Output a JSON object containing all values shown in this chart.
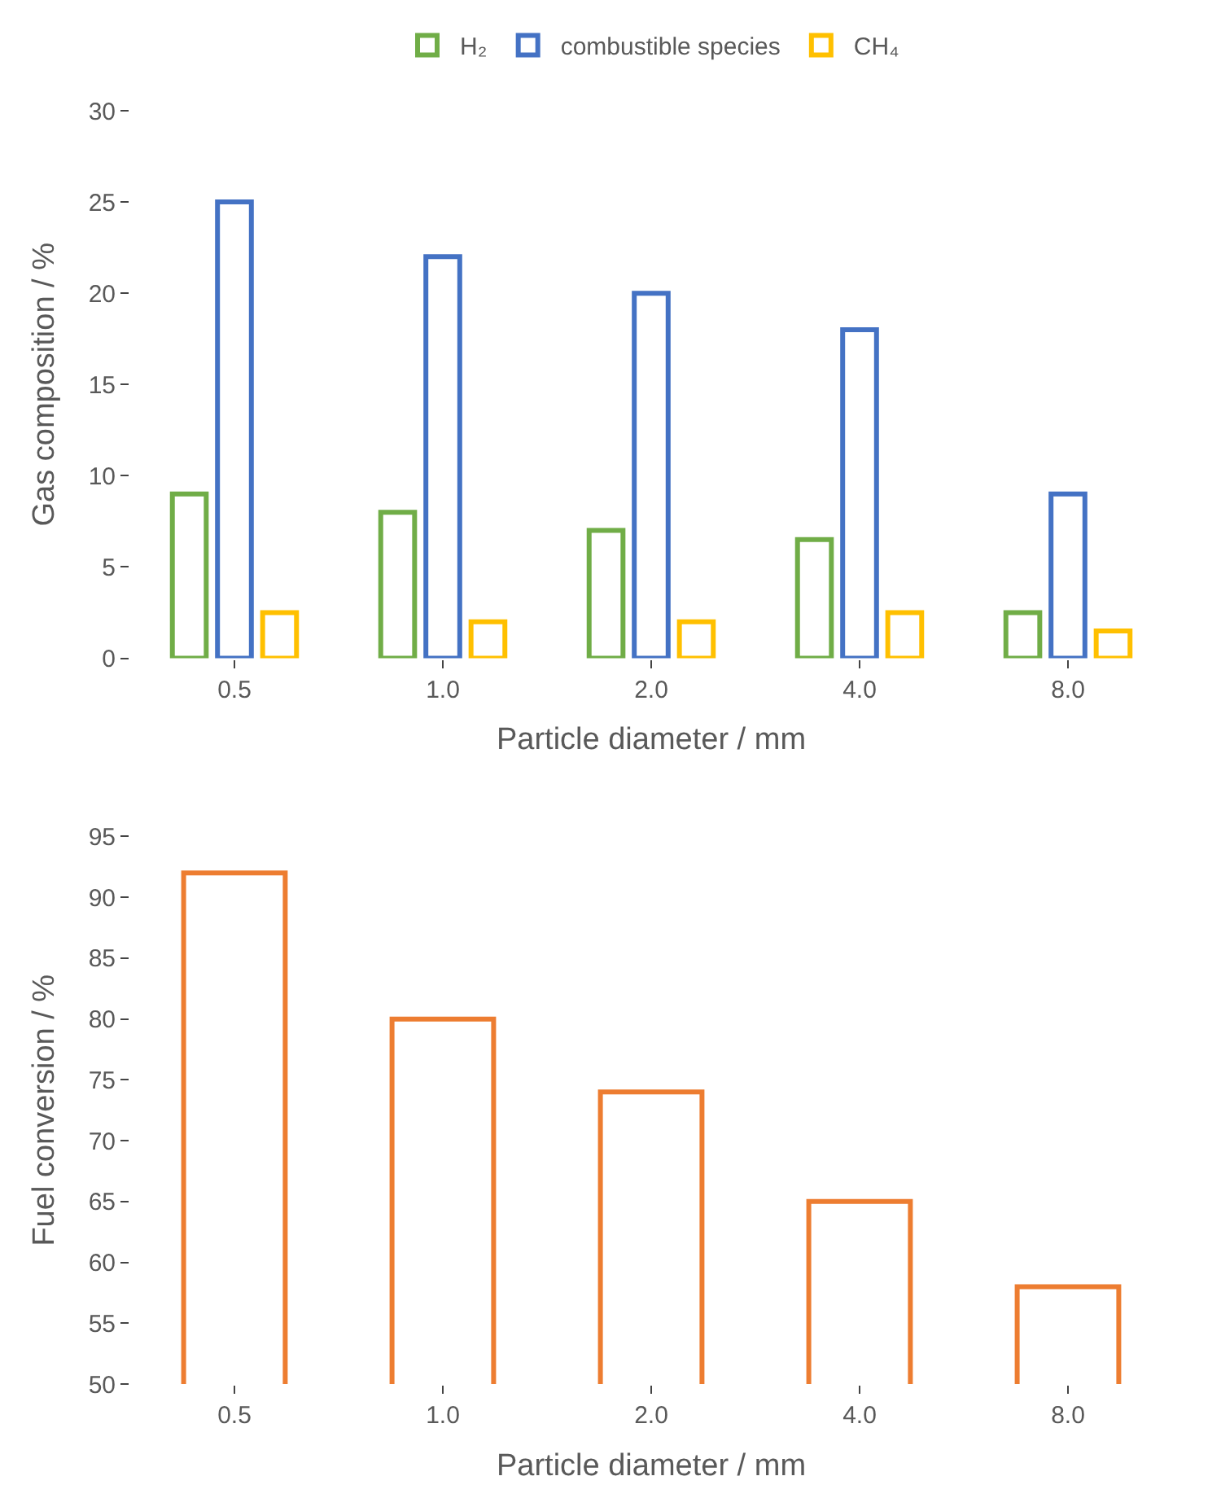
{
  "chart_data": [
    {
      "type": "bar",
      "categories": [
        "0.5",
        "1.0",
        "2.0",
        "4.0",
        "8.0"
      ],
      "xlabel": "Particle diameter / mm",
      "ylabel": "Gas composition / %",
      "ylim": [
        0,
        30
      ],
      "yticks": [
        0,
        5,
        10,
        15,
        20,
        25,
        30
      ],
      "legend": "top",
      "series": [
        {
          "name": "H₂",
          "color": "#70ad47",
          "values": [
            9,
            8,
            7,
            6.5,
            2.5
          ]
        },
        {
          "name": "combustible species",
          "color": "#4472c4",
          "values": [
            25,
            22,
            20,
            18,
            9
          ]
        },
        {
          "name": "CH₄",
          "color": "#ffc000",
          "values": [
            2.5,
            2,
            2,
            2.5,
            1.5
          ]
        }
      ]
    },
    {
      "type": "bar",
      "categories": [
        "0.5",
        "1.0",
        "2.0",
        "4.0",
        "8.0"
      ],
      "xlabel": "Particle diameter / mm",
      "ylabel": "Fuel conversion / %",
      "ylim": [
        50,
        95
      ],
      "yticks": [
        50,
        55,
        60,
        65,
        70,
        75,
        80,
        85,
        90,
        95
      ],
      "series": [
        {
          "color": "#ed7d31",
          "values": [
            92,
            80,
            74,
            65,
            58
          ]
        }
      ]
    }
  ]
}
